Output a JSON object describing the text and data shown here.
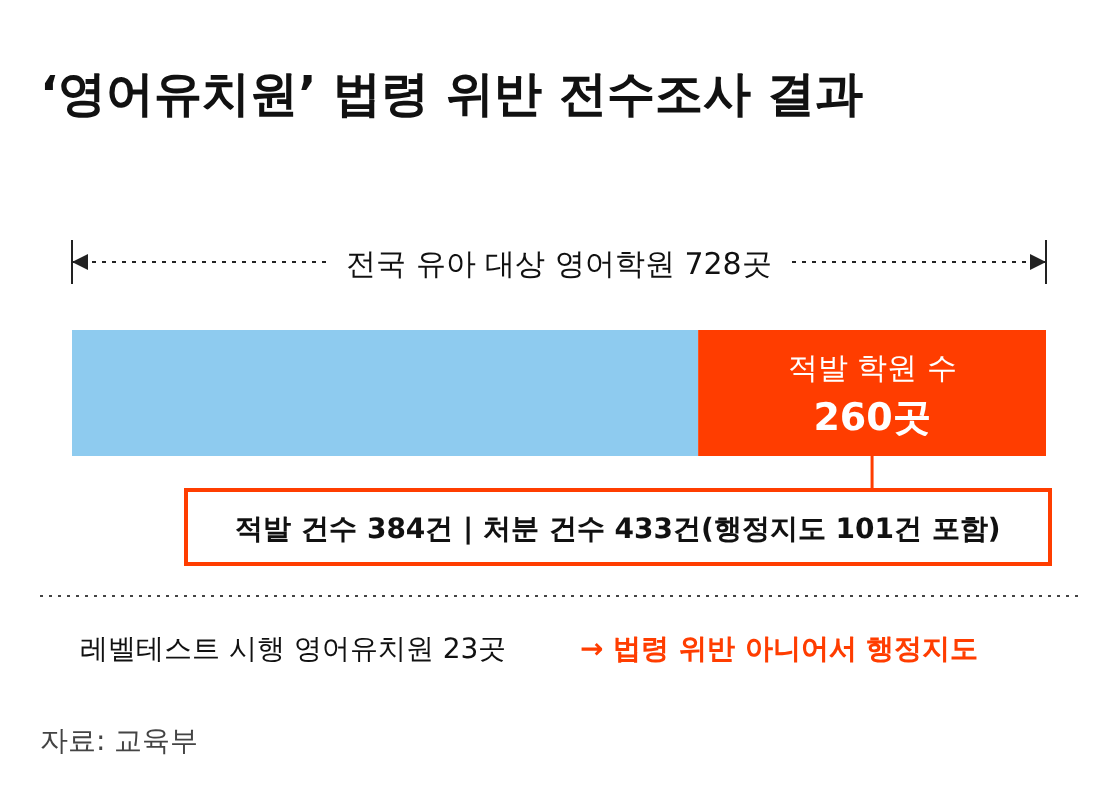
{
  "chart_data": {
    "type": "bar",
    "orientation": "horizontal",
    "stacked": true,
    "title": "‘영어유치원’ 법령 위반 전수조사 결과",
    "categories": [
      null
    ],
    "series": [
      {
        "color": "#8ecbef",
        "values": [
          468
        ]
      },
      {
        "name": "적발 학원 수",
        "color": "#ff3d00",
        "values": [
          260
        ],
        "value_labels": [
          "260곳"
        ]
      }
    ],
    "totals": [
      "전국 유아 대상 영어학원 728곳"
    ],
    "annotations": [
      "적발 건수 384건 | 처분 건수 433건(행정지도 101건 포함)",
      "레벨테스트 시행 영어유치원 23곳",
      "→ 법령 위반 아니어서 행정지도",
      "자료: 교육부"
    ]
  }
}
